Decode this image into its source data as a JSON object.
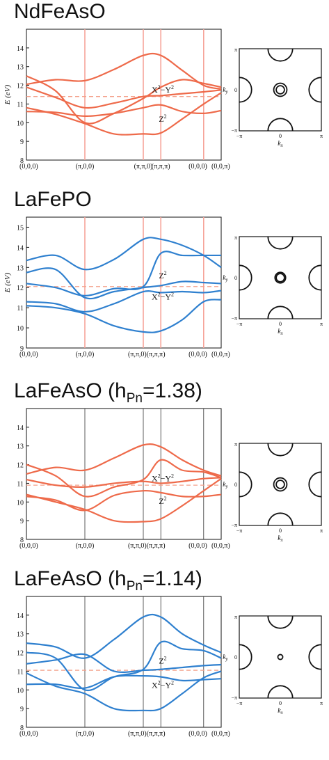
{
  "chart_data": [
    {
      "type": "line",
      "title": "NdFeAsO",
      "ylabel": "E (eV)",
      "ylim": [
        8,
        15
      ],
      "yticks": [
        "8",
        "9",
        "10",
        "11",
        "12",
        "13",
        "14"
      ],
      "xtick_labels": [
        "(0,0,0)",
        "(π,0,0)",
        "(π,π,0)",
        "(π,π,π)",
        "(0,0,0)",
        "(0,0,π)"
      ],
      "xtick_pos": [
        0,
        0.3,
        0.6,
        0.69,
        0.91,
        1.0
      ],
      "color": "#ee6a4a",
      "fermi_level": 11.4,
      "orbital_labels": [
        {
          "base": "X",
          "sup": "2",
          "mid": "−Y",
          "sup2": "2",
          "x": 0.7,
          "y": 11.62
        },
        {
          "base": "Z",
          "sup": "2",
          "mid": "",
          "sup2": "",
          "x": 0.7,
          "y": 10.05
        }
      ],
      "x": [
        0,
        0.15,
        0.3,
        0.45,
        0.6,
        0.69,
        0.8,
        0.91,
        1.0
      ],
      "series": [
        {
          "values": [
            12.05,
            12.3,
            12.25,
            12.85,
            13.6,
            13.6,
            12.8,
            12.0,
            11.8
          ]
        },
        {
          "values": [
            12.5,
            11.7,
            10.0,
            10.5,
            11.3,
            11.9,
            12.3,
            12.1,
            11.9
          ]
        },
        {
          "values": [
            11.9,
            11.35,
            10.8,
            11.05,
            11.4,
            11.45,
            11.55,
            11.65,
            11.75
          ]
        },
        {
          "values": [
            10.8,
            10.45,
            9.95,
            9.4,
            9.4,
            9.45,
            10.2,
            11.0,
            11.6
          ]
        },
        {
          "values": [
            10.6,
            10.55,
            10.35,
            10.5,
            10.8,
            10.95,
            10.6,
            10.5,
            10.65
          ]
        }
      ],
      "fermi_surface": {
        "xlabel": "kx",
        "ylabel": "ky",
        "ticks": [
          "−π",
          "0",
          "π"
        ],
        "circle_radii": [
          0.1,
          0.16
        ],
        "corner_radius": 0.3
      }
    },
    {
      "type": "line",
      "title": "LaFePO",
      "ylabel": "E (eV)",
      "ylim": [
        9,
        15.5
      ],
      "yticks": [
        "9",
        "10",
        "11",
        "12",
        "13",
        "14",
        "15"
      ],
      "xtick_labels": [
        "(0,0,0)",
        "(π,0,0)",
        "(π,π,0)(π,π,π)",
        "",
        "(0,0,0)",
        "(0,0,π)"
      ],
      "xtick_pos": [
        0,
        0.3,
        0.6,
        0.69,
        0.91,
        1.0
      ],
      "color": "#2f80cf",
      "fermi_level": 12.05,
      "orbital_labels": [
        {
          "base": "Z",
          "sup": "2",
          "mid": "",
          "sup2": "",
          "x": 0.7,
          "y": 12.45
        },
        {
          "base": "X",
          "sup": "2",
          "mid": "−Y",
          "sup2": "2",
          "x": 0.7,
          "y": 11.4
        }
      ],
      "x": [
        0,
        0.15,
        0.3,
        0.45,
        0.6,
        0.69,
        0.8,
        0.91,
        1.0
      ],
      "series": [
        {
          "values": [
            13.35,
            13.6,
            12.9,
            13.4,
            14.4,
            14.4,
            14.1,
            13.6,
            13.0
          ]
        },
        {
          "values": [
            12.75,
            12.9,
            11.5,
            11.8,
            12.0,
            12.1,
            12.3,
            12.25,
            12.2
          ]
        },
        {
          "values": [
            12.2,
            12.0,
            11.6,
            11.95,
            12.05,
            13.7,
            13.6,
            13.6,
            13.6
          ]
        },
        {
          "values": [
            11.3,
            11.2,
            10.8,
            11.2,
            11.8,
            11.75,
            11.8,
            11.75,
            11.85
          ]
        },
        {
          "values": [
            11.1,
            11.0,
            10.7,
            10.1,
            9.8,
            9.85,
            10.4,
            11.3,
            11.4
          ]
        }
      ],
      "fermi_surface": {
        "xlabel": "kx",
        "ylabel": "ky",
        "ticks": [
          "−π",
          "0",
          "π"
        ],
        "circle_radii": [
          0.1,
          0.13
        ],
        "corner_radius": 0.3
      }
    },
    {
      "type": "line",
      "title": "LaFeAsO (h",
      "title_sub": "Pn",
      "title_tail": "=1.38)",
      "ylabel": "",
      "ylim": [
        8,
        15
      ],
      "yticks": [
        "8",
        "9",
        "10",
        "11",
        "12",
        "13",
        "14"
      ],
      "xtick_labels": [
        "(0,0,0)",
        "(π,0,0)",
        "(π,π,0)(π,π,π)",
        "",
        "(0,0,0)",
        "(0,0,π)"
      ],
      "xtick_pos": [
        0,
        0.3,
        0.6,
        0.69,
        0.91,
        1.0
      ],
      "color": "#ee6a4a",
      "fermi_level": 10.9,
      "orbital_labels": [
        {
          "base": "X",
          "sup": "2",
          "mid": "−Y",
          "sup2": "2",
          "x": 0.7,
          "y": 11.1
        },
        {
          "base": "Z",
          "sup": "2",
          "mid": "",
          "sup2": "",
          "x": 0.7,
          "y": 9.9
        }
      ],
      "x": [
        0,
        0.15,
        0.3,
        0.45,
        0.6,
        0.69,
        0.8,
        0.91,
        1.0
      ],
      "series": [
        {
          "values": [
            11.5,
            11.85,
            11.7,
            12.35,
            13.05,
            12.95,
            12.25,
            11.7,
            11.4
          ]
        },
        {
          "values": [
            12.0,
            11.4,
            10.3,
            10.8,
            11.2,
            12.25,
            11.7,
            11.6,
            11.3
          ]
        },
        {
          "values": [
            11.2,
            10.9,
            10.8,
            11.0,
            11.1,
            11.0,
            11.1,
            11.25,
            11.3
          ]
        },
        {
          "values": [
            10.4,
            10.0,
            9.6,
            9.0,
            8.95,
            9.1,
            9.8,
            10.6,
            11.25
          ]
        },
        {
          "values": [
            10.3,
            10.1,
            9.55,
            10.35,
            10.6,
            10.5,
            10.3,
            10.3,
            10.4
          ]
        }
      ],
      "fermi_surface": {
        "xlabel": "kx",
        "ylabel": "ky",
        "ticks": [
          "−π",
          "0",
          "π"
        ],
        "circle_radii": [
          0.1,
          0.16
        ],
        "corner_radius": 0.3
      }
    },
    {
      "type": "line",
      "title": "LaFeAsO (h",
      "title_sub": "Pn",
      "title_tail": "=1.14)",
      "ylabel": "",
      "ylim": [
        8,
        15
      ],
      "yticks": [
        "8",
        "9",
        "10",
        "11",
        "12",
        "13",
        "14"
      ],
      "xtick_labels": [
        "(0,0,0)",
        "(π,0,0)",
        "(π,π,0)(π,π,π)",
        "",
        "(0,0,0)",
        "(0,0,π)"
      ],
      "xtick_pos": [
        0,
        0.3,
        0.6,
        0.69,
        0.91,
        1.0
      ],
      "color": "#2f80cf",
      "fermi_level": 11.05,
      "orbital_labels": [
        {
          "base": "Z",
          "sup": "2",
          "mid": "",
          "sup2": "",
          "x": 0.7,
          "y": 11.4
        },
        {
          "base": "X",
          "sup": "2",
          "mid": "−Y",
          "sup2": "2",
          "x": 0.7,
          "y": 10.1
        }
      ],
      "x": [
        0,
        0.15,
        0.3,
        0.45,
        0.6,
        0.69,
        0.8,
        0.91,
        1.0
      ],
      "series": [
        {
          "values": [
            12.5,
            12.3,
            11.7,
            12.7,
            13.9,
            13.9,
            13.0,
            12.4,
            12.0
          ]
        },
        {
          "values": [
            12.0,
            11.7,
            10.0,
            10.7,
            11.1,
            12.55,
            12.2,
            12.1,
            11.7
          ]
        },
        {
          "values": [
            11.4,
            11.6,
            11.9,
            11.0,
            11.05,
            11.1,
            11.2,
            11.3,
            11.35
          ]
        },
        {
          "values": [
            10.3,
            10.3,
            10.1,
            10.7,
            10.75,
            10.7,
            10.5,
            10.55,
            10.6
          ]
        },
        {
          "values": [
            10.9,
            10.2,
            9.8,
            9.0,
            8.9,
            9.0,
            9.8,
            10.65,
            11.0
          ]
        }
      ],
      "fermi_surface": {
        "xlabel": "kx",
        "ylabel": "ky",
        "ticks": [
          "−π",
          "0",
          "π"
        ],
        "circle_radii": [
          0.06
        ],
        "corner_radius": 0.3
      }
    }
  ]
}
